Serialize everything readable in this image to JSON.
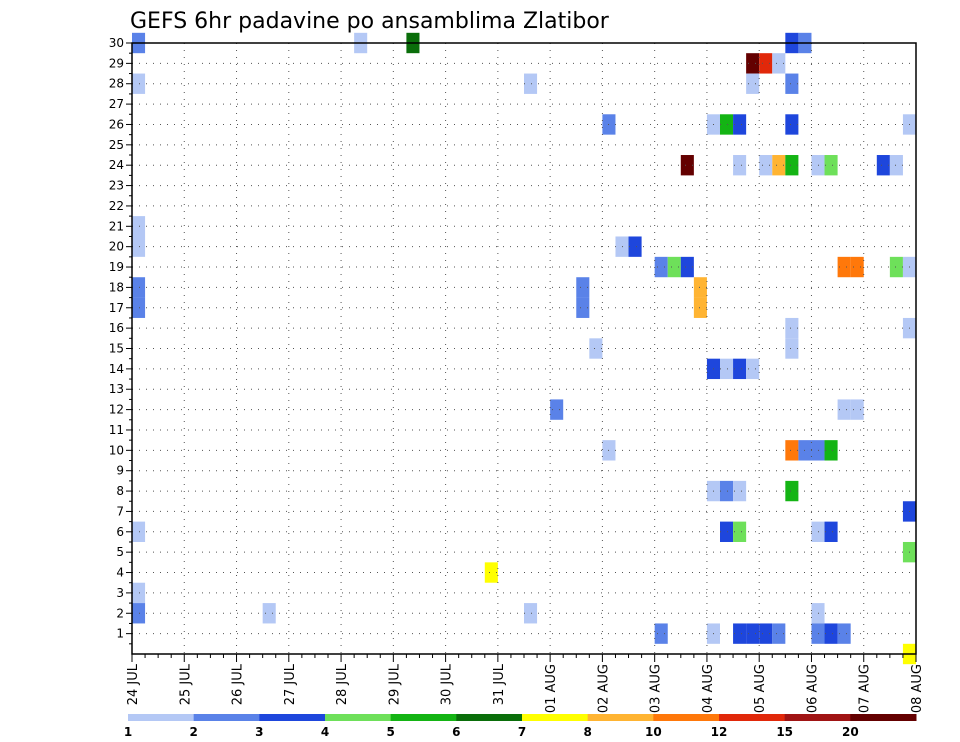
{
  "chart_data": {
    "type": "heatmap",
    "title": "GEFS 6hr padavine po ansamblima Zlatibor",
    "xlabel": "",
    "ylabel": "",
    "x_tick_labels": [
      "24 JUL",
      "25 JUL",
      "26 JUL",
      "27 JUL",
      "28 JUL",
      "29 JUL",
      "30 JUL",
      "31 JUL",
      "01 AUG",
      "02 AUG",
      "03 AUG",
      "04 AUG",
      "05 AUG",
      "06 AUG",
      "07 AUG",
      "08 AUG"
    ],
    "x_unit": "6-hour step from 24 JUL 00z",
    "xlim": [
      0,
      60
    ],
    "y_tick_labels": [
      "1",
      "2",
      "3",
      "4",
      "5",
      "6",
      "7",
      "8",
      "9",
      "10",
      "11",
      "12",
      "13",
      "14",
      "15",
      "16",
      "17",
      "18",
      "19",
      "20",
      "21",
      "22",
      "23",
      "24",
      "25",
      "26",
      "27",
      "28",
      "29",
      "30"
    ],
    "ylim": [
      0,
      30
    ],
    "grid": true,
    "legend": {
      "placement": "bottom",
      "levels": [
        "1",
        "2",
        "3",
        "4",
        "5",
        "6",
        "7",
        "8",
        "10",
        "12",
        "15",
        "20"
      ],
      "colors": [
        "#b4c8f5",
        "#5a82e8",
        "#1e46dc",
        "#6ee05a",
        "#14b414",
        "#0a6e0a",
        "#ffff00",
        "#ffb432",
        "#ff780a",
        "#e1280a",
        "#a01414",
        "#640000"
      ]
    },
    "cells": [
      {
        "member": 30,
        "step": 0.5,
        "bin": 1
      },
      {
        "member": 30,
        "step": 17.5,
        "bin": 0
      },
      {
        "member": 30,
        "step": 21.5,
        "bin": 5
      },
      {
        "member": 30,
        "step": 50.5,
        "bin": 2
      },
      {
        "member": 30,
        "step": 51.5,
        "bin": 1
      },
      {
        "member": 29,
        "step": 47.5,
        "bin": 11
      },
      {
        "member": 29,
        "step": 48.5,
        "bin": 9
      },
      {
        "member": 29,
        "step": 49.5,
        "bin": 0
      },
      {
        "member": 28,
        "step": 0.5,
        "bin": 0
      },
      {
        "member": 28,
        "step": 30.5,
        "bin": 0
      },
      {
        "member": 28,
        "step": 47.5,
        "bin": 0
      },
      {
        "member": 28,
        "step": 50.5,
        "bin": 1
      },
      {
        "member": 26,
        "step": 36.5,
        "bin": 1
      },
      {
        "member": 26,
        "step": 44.5,
        "bin": 0
      },
      {
        "member": 26,
        "step": 45.5,
        "bin": 4
      },
      {
        "member": 26,
        "step": 46.5,
        "bin": 2
      },
      {
        "member": 26,
        "step": 50.5,
        "bin": 2
      },
      {
        "member": 26,
        "step": 59.5,
        "bin": 0
      },
      {
        "member": 24,
        "step": 42.5,
        "bin": 11
      },
      {
        "member": 24,
        "step": 46.5,
        "bin": 0
      },
      {
        "member": 24,
        "step": 48.5,
        "bin": 0
      },
      {
        "member": 24,
        "step": 49.5,
        "bin": 7
      },
      {
        "member": 24,
        "step": 50.5,
        "bin": 4
      },
      {
        "member": 24,
        "step": 52.5,
        "bin": 0
      },
      {
        "member": 24,
        "step": 53.5,
        "bin": 3
      },
      {
        "member": 24,
        "step": 57.5,
        "bin": 2
      },
      {
        "member": 24,
        "step": 58.5,
        "bin": 0
      },
      {
        "member": 21,
        "step": 0.5,
        "bin": 0
      },
      {
        "member": 20,
        "step": 0.5,
        "bin": 0
      },
      {
        "member": 20,
        "step": 37.5,
        "bin": 0
      },
      {
        "member": 20,
        "step": 38.5,
        "bin": 2
      },
      {
        "member": 19,
        "step": 40.5,
        "bin": 1
      },
      {
        "member": 19,
        "step": 41.5,
        "bin": 3
      },
      {
        "member": 19,
        "step": 42.5,
        "bin": 2
      },
      {
        "member": 19,
        "step": 54.5,
        "bin": 8
      },
      {
        "member": 19,
        "step": 55.5,
        "bin": 8
      },
      {
        "member": 19,
        "step": 58.5,
        "bin": 3
      },
      {
        "member": 19,
        "step": 59.5,
        "bin": 0
      },
      {
        "member": 18,
        "step": 0.5,
        "bin": 1
      },
      {
        "member": 18,
        "step": 34.5,
        "bin": 1
      },
      {
        "member": 17,
        "step": 0.5,
        "bin": 1
      },
      {
        "member": 17,
        "step": 43.5,
        "bin": 7
      },
      {
        "member": 18,
        "step": 43.5,
        "bin": 7
      },
      {
        "member": 17,
        "step": 34.5,
        "bin": 1
      },
      {
        "member": 16,
        "step": 59.5,
        "bin": 0
      },
      {
        "member": 16,
        "step": 50.5,
        "bin": 0
      },
      {
        "member": 15,
        "step": 35.5,
        "bin": 0
      },
      {
        "member": 15,
        "step": 50.5,
        "bin": 0
      },
      {
        "member": 14,
        "step": 44.5,
        "bin": 2
      },
      {
        "member": 14,
        "step": 45.5,
        "bin": 0
      },
      {
        "member": 14,
        "step": 46.5,
        "bin": 2
      },
      {
        "member": 14,
        "step": 47.5,
        "bin": 0
      },
      {
        "member": 12,
        "step": 32.5,
        "bin": 1
      },
      {
        "member": 12,
        "step": 54.5,
        "bin": 0
      },
      {
        "member": 12,
        "step": 55.5,
        "bin": 0
      },
      {
        "member": 10,
        "step": 36.5,
        "bin": 0
      },
      {
        "member": 10,
        "step": 50.5,
        "bin": 8
      },
      {
        "member": 10,
        "step": 51.5,
        "bin": 1
      },
      {
        "member": 10,
        "step": 52.5,
        "bin": 1
      },
      {
        "member": 10,
        "step": 53.5,
        "bin": 4
      },
      {
        "member": 8,
        "step": 44.5,
        "bin": 0
      },
      {
        "member": 8,
        "step": 45.5,
        "bin": 1
      },
      {
        "member": 8,
        "step": 46.5,
        "bin": 0
      },
      {
        "member": 8,
        "step": 50.5,
        "bin": 4
      },
      {
        "member": 7,
        "step": 59.5,
        "bin": 2
      },
      {
        "member": 6,
        "step": 0.5,
        "bin": 0
      },
      {
        "member": 6,
        "step": 45.5,
        "bin": 2
      },
      {
        "member": 6,
        "step": 46.5,
        "bin": 3
      },
      {
        "member": 6,
        "step": 52.5,
        "bin": 0
      },
      {
        "member": 6,
        "step": 53.5,
        "bin": 2
      },
      {
        "member": 5,
        "step": 59.5,
        "bin": 3
      },
      {
        "member": 4,
        "step": 27.5,
        "bin": 6
      },
      {
        "member": 3,
        "step": 0.5,
        "bin": 0
      },
      {
        "member": 2,
        "step": 0.5,
        "bin": 1
      },
      {
        "member": 2,
        "step": 10.5,
        "bin": 0
      },
      {
        "member": 2,
        "step": 30.5,
        "bin": 0
      },
      {
        "member": 2,
        "step": 52.5,
        "bin": 0
      },
      {
        "member": 1,
        "step": 40.5,
        "bin": 1
      },
      {
        "member": 1,
        "step": 44.5,
        "bin": 0
      },
      {
        "member": 1,
        "step": 46.5,
        "bin": 2
      },
      {
        "member": 1,
        "step": 47.5,
        "bin": 2
      },
      {
        "member": 1,
        "step": 48.5,
        "bin": 2
      },
      {
        "member": 1,
        "step": 49.5,
        "bin": 1
      },
      {
        "member": 1,
        "step": 52.5,
        "bin": 1
      },
      {
        "member": 1,
        "step": 53.5,
        "bin": 2
      },
      {
        "member": 1,
        "step": 54.5,
        "bin": 1
      },
      {
        "member": 0,
        "step": 59.5,
        "bin": 6
      }
    ]
  }
}
